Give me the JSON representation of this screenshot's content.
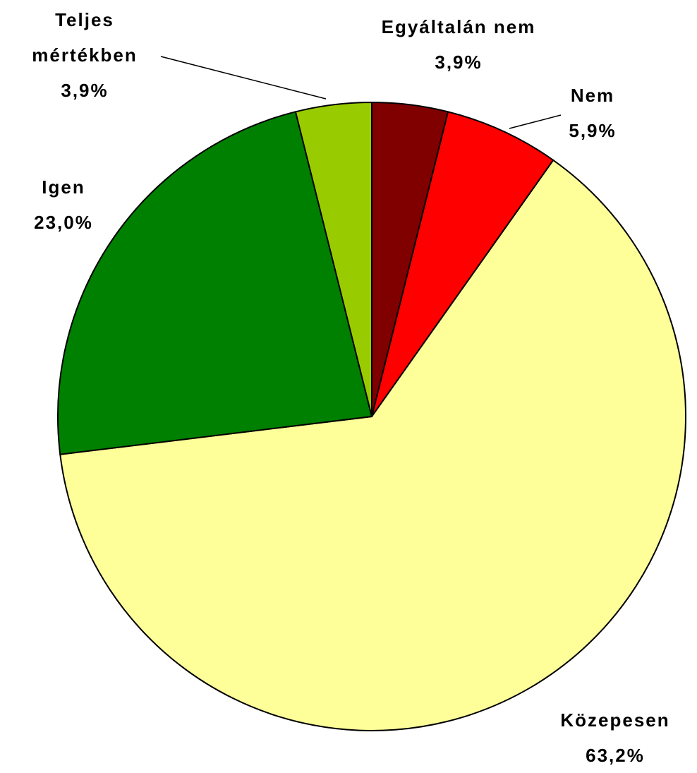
{
  "chart_data": {
    "type": "pie",
    "categories": [
      "Egyáltalán nem",
      "Nem",
      "Közepesen",
      "Igen",
      "Teljes mértékben"
    ],
    "values": [
      3.9,
      5.9,
      63.2,
      23.0,
      3.9
    ],
    "value_labels": [
      "3,9%",
      "5,9%",
      "63,2%",
      "23,0%",
      "3,9%"
    ],
    "colors": [
      "#800000",
      "#ff0000",
      "#ffff99",
      "#008000",
      "#99cc00"
    ]
  }
}
